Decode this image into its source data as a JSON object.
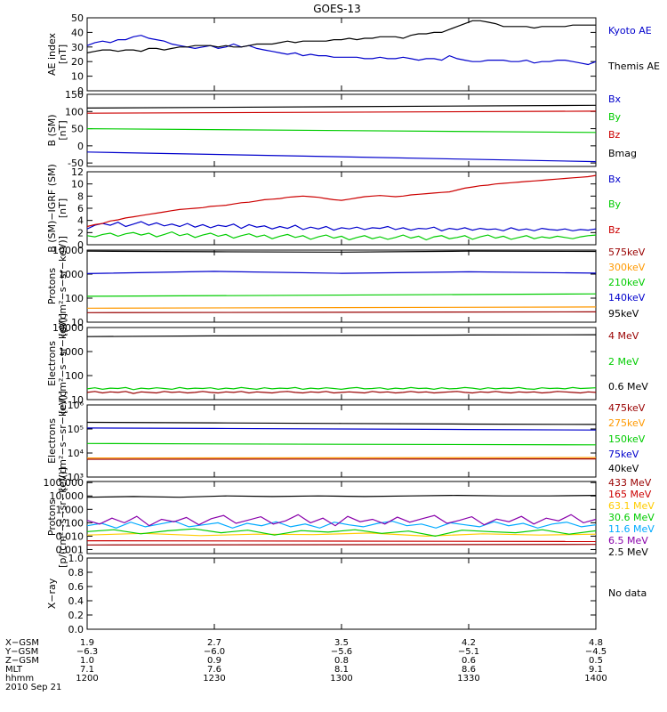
{
  "title": "GOES-13",
  "colors": {
    "black": "#000000",
    "blue": "#0000cc",
    "green": "#00cc00",
    "red": "#cc0000",
    "orange": "#ff9900",
    "cyan": "#00aaff",
    "purple": "#8800aa",
    "darkred": "#990000"
  },
  "chart_data": [
    {
      "type": "line",
      "ylabel": [
        "AE index",
        "[nT]"
      ],
      "yticks": [
        "0",
        "10",
        "20",
        "30",
        "40",
        "50"
      ],
      "ylim": [
        0,
        50
      ],
      "scale": "linear",
      "series": [
        {
          "name": "Kyoto AE",
          "color": "#0000cc",
          "side": "right",
          "values": [
            31,
            33,
            34,
            33,
            35,
            35,
            37,
            38,
            36,
            35,
            34,
            32,
            31,
            30,
            29,
            30,
            31,
            29,
            30,
            32,
            30,
            31,
            29,
            28,
            27,
            26,
            25,
            26,
            24,
            25,
            24,
            24,
            23,
            23,
            23,
            23,
            22,
            22,
            23,
            22,
            22,
            23,
            22,
            21,
            22,
            22,
            21,
            24,
            22,
            21,
            20,
            20,
            21,
            21,
            21,
            20,
            20,
            21,
            19,
            20,
            20,
            21,
            21,
            20,
            19,
            18,
            20
          ]
        },
        {
          "name": "Themis AE",
          "color": "#000000",
          "side": "right",
          "values": [
            26,
            27,
            28,
            28,
            27,
            28,
            28,
            27,
            29,
            29,
            28,
            29,
            30,
            30,
            31,
            31,
            31,
            30,
            31,
            30,
            30,
            31,
            32,
            32,
            32,
            33,
            34,
            33,
            34,
            34,
            34,
            34,
            35,
            35,
            36,
            35,
            36,
            36,
            37,
            37,
            37,
            36,
            38,
            39,
            39,
            40,
            40,
            42,
            44,
            46,
            48,
            48,
            47,
            46,
            44,
            44,
            44,
            44,
            43,
            44,
            44,
            44,
            44,
            45,
            45,
            45,
            45
          ]
        }
      ]
    },
    {
      "type": "line",
      "ylabel": [
        "B (SM)",
        "[nT]"
      ],
      "yticks": [
        "-50",
        "0",
        "50",
        "100",
        "150"
      ],
      "ylim": [
        -60,
        150
      ],
      "scale": "linear",
      "series": [
        {
          "name": "Bx",
          "color": "#0000cc",
          "values": [
            -18,
            -46
          ]
        },
        {
          "name": "By",
          "color": "#00cc00",
          "values": [
            50,
            39
          ]
        },
        {
          "name": "Bz",
          "color": "#cc0000",
          "values": [
            95,
            101
          ]
        },
        {
          "name": "Bmag",
          "color": "#000000",
          "values": [
            110,
            118
          ]
        }
      ]
    },
    {
      "type": "line",
      "ylabel": [
        "B (SM)−IGRF (SM)",
        "[nT]"
      ],
      "yticks": [
        "0",
        "2",
        "4",
        "6",
        "8",
        "10",
        "12"
      ],
      "ylim": [
        0,
        12
      ],
      "scale": "linear",
      "series": [
        {
          "name": "Bx",
          "color": "#0000cc",
          "values": [
            2.6,
            3.2,
            3.5,
            3.2,
            3.7,
            3.0,
            3.4,
            3.8,
            3.2,
            3.6,
            3.1,
            3.4,
            3.0,
            3.5,
            2.9,
            3.3,
            2.8,
            3.2,
            3.0,
            3.4,
            2.7,
            3.3,
            2.9,
            3.1,
            2.6,
            3.0,
            2.7,
            3.2,
            2.5,
            2.9,
            2.6,
            3.0,
            2.4,
            2.8,
            2.6,
            2.9,
            2.5,
            2.8,
            2.7,
            3.0,
            2.5,
            2.8,
            2.4,
            2.7,
            2.6,
            2.9,
            2.3,
            2.7,
            2.5,
            2.8,
            2.4,
            2.7,
            2.5,
            2.6,
            2.3,
            2.8,
            2.4,
            2.6,
            2.3,
            2.7,
            2.5,
            2.4,
            2.6,
            2.3,
            2.5,
            2.4,
            2.6
          ]
        },
        {
          "name": "By",
          "color": "#00cc00",
          "values": [
            1.5,
            1.3,
            1.7,
            1.9,
            1.4,
            1.8,
            2.0,
            1.6,
            1.9,
            1.3,
            1.7,
            2.1,
            1.5,
            1.8,
            1.2,
            1.6,
            1.9,
            1.4,
            1.7,
            1.1,
            1.5,
            1.8,
            1.3,
            1.6,
            1.0,
            1.4,
            1.7,
            1.2,
            1.5,
            0.9,
            1.3,
            1.6,
            1.1,
            1.4,
            0.8,
            1.2,
            1.5,
            1.0,
            1.3,
            0.9,
            1.2,
            1.6,
            1.1,
            1.4,
            0.8,
            1.3,
            1.5,
            1.0,
            1.2,
            1.5,
            0.9,
            1.3,
            1.6,
            1.1,
            1.4,
            0.9,
            1.2,
            1.5,
            1.0,
            1.3,
            1.1,
            1.4,
            1.2,
            1.0,
            1.3,
            1.5,
            1.6
          ]
        },
        {
          "name": "Bz",
          "color": "#cc0000",
          "values": [
            3.0,
            3.3,
            3.5,
            3.9,
            4.1,
            4.4,
            4.6,
            4.8,
            5.0,
            5.2,
            5.4,
            5.6,
            5.8,
            5.9,
            6.0,
            6.1,
            6.3,
            6.4,
            6.5,
            6.7,
            6.9,
            7.0,
            7.2,
            7.4,
            7.5,
            7.6,
            7.8,
            7.9,
            8.0,
            7.9,
            7.8,
            7.6,
            7.4,
            7.3,
            7.5,
            7.7,
            7.9,
            8.0,
            8.1,
            8.0,
            7.9,
            8.0,
            8.2,
            8.3,
            8.4,
            8.5,
            8.6,
            8.7,
            9.0,
            9.3,
            9.5,
            9.7,
            9.8,
            10.0,
            10.1,
            10.2,
            10.3,
            10.4,
            10.5,
            10.6,
            10.7,
            10.8,
            10.9,
            11.0,
            11.1,
            11.2,
            11.4
          ]
        }
      ]
    },
    {
      "type": "line",
      "ylabel": [
        "Protons",
        "[p/(cm²−s−sr−keV)]"
      ],
      "yticks": [
        "10",
        "100",
        "1000",
        "10000"
      ],
      "ylim": [
        10,
        10000
      ],
      "scale": "log",
      "series": [
        {
          "name": "575keV",
          "color": "#990000",
          "values": [
            25,
            27
          ]
        },
        {
          "name": "300keV",
          "color": "#ff9900",
          "values": [
            38,
            43
          ]
        },
        {
          "name": "210keV",
          "color": "#00cc00",
          "values": [
            120,
            150
          ]
        },
        {
          "name": "140keV",
          "color": "#0000cc",
          "values": [
            1050,
            1300,
            1080,
            1250,
            1100
          ]
        },
        {
          "name": "95keV",
          "color": "#000000",
          "values": [
            9000,
            8500,
            8200,
            9000,
            8800
          ]
        }
      ]
    },
    {
      "type": "line",
      "ylabel": [
        "Electrons",
        "[e/(cm²−s−sr−keV)]"
      ],
      "yticks": [
        "10",
        "100",
        "1000",
        "10000"
      ],
      "ylim": [
        10,
        10000
      ],
      "scale": "log",
      "series": [
        {
          "name": "4 MeV",
          "color": "#990000",
          "values": [
            20,
            22,
            19,
            21,
            20,
            22,
            18,
            21,
            20,
            19,
            22,
            20,
            21,
            19,
            20,
            22,
            20,
            19,
            21,
            20,
            22,
            19,
            21,
            20,
            19,
            21,
            22,
            20,
            19,
            21,
            20,
            22,
            19,
            20,
            21,
            20,
            19,
            22,
            20,
            21,
            19,
            20,
            22,
            20,
            21,
            19,
            20,
            21,
            22,
            20,
            19,
            21,
            20,
            22,
            20,
            19,
            21,
            20,
            21,
            19,
            20,
            22,
            21,
            20,
            19,
            21,
            20
          ]
        },
        {
          "name": "2 MeV",
          "color": "#00cc00",
          "values": [
            28,
            31,
            27,
            30,
            29,
            32,
            26,
            30,
            28,
            31,
            29,
            27,
            32,
            28,
            30,
            29,
            31,
            27,
            30,
            28,
            32,
            29,
            27,
            31,
            28,
            30,
            29,
            32,
            27,
            30,
            28,
            31,
            29,
            27,
            30,
            32,
            28,
            29,
            31,
            27,
            30,
            28,
            32,
            29,
            30,
            27,
            31,
            28,
            29,
            32,
            30,
            27,
            31,
            28,
            30,
            29,
            32,
            28,
            27,
            31,
            29,
            30,
            28,
            32,
            29,
            30,
            31
          ]
        },
        {
          "name": "0.6 MeV",
          "color": "#000000",
          "values": [
            4200,
            4500,
            4700,
            4900,
            5000
          ]
        }
      ]
    },
    {
      "type": "line",
      "ylabel": [
        "Electrons",
        "[e/(cm²−s−sr−keV)]"
      ],
      "yticks": [
        "10³",
        "10⁴",
        "10⁵",
        "10⁶"
      ],
      "ylim": [
        1000,
        1000000
      ],
      "scale": "log",
      "series": [
        {
          "name": "475keV",
          "color": "#990000",
          "values": [
            5500,
            5700
          ]
        },
        {
          "name": "275keV",
          "color": "#ff9900",
          "values": [
            6200,
            6500
          ]
        },
        {
          "name": "150keV",
          "color": "#00cc00",
          "values": [
            25000,
            23000,
            22000
          ]
        },
        {
          "name": "75keV",
          "color": "#0000cc",
          "values": [
            110000,
            105000,
            100000,
            95000,
            90000
          ]
        },
        {
          "name": "40keV",
          "color": "#000000",
          "values": [
            190000,
            180000,
            170000,
            160000,
            155000
          ]
        }
      ]
    },
    {
      "type": "line",
      "ylabel": [
        "Protons",
        "[p/(cm²−s−sr−keV)]"
      ],
      "yticks": [
        "0.001",
        "0.010",
        "0.100",
        "1.000",
        "10.000",
        "100.000"
      ],
      "ylim": [
        0.0005,
        120
      ],
      "scale": "log",
      "series": [
        {
          "name": "433 MeV",
          "color": "#990000",
          "values": [
            0.0022,
            0.0024
          ]
        },
        {
          "name": "165 MeV",
          "color": "#cc0000",
          "values": [
            0.0045,
            0.004
          ]
        },
        {
          "name": "63.1 MeV",
          "color": "#ffcc00",
          "values": [
            0.012,
            0.016,
            0.011,
            0.014,
            0.013,
            0.017,
            0.01,
            0.015,
            0.012,
            0.014
          ]
        },
        {
          "name": "30.6 MeV",
          "color": "#00cc00",
          "values": [
            0.022,
            0.03,
            0.015,
            0.025,
            0.035,
            0.018,
            0.028,
            0.012,
            0.026,
            0.02,
            0.03,
            0.016,
            0.024,
            0.01,
            0.028,
            0.022,
            0.018,
            0.03,
            0.014,
            0.025
          ]
        },
        {
          "name": "11.6 MeV",
          "color": "#00aaff",
          "values": [
            0.06,
            0.09,
            0.04,
            0.11,
            0.05,
            0.08,
            0.13,
            0.05,
            0.07,
            0.1,
            0.04,
            0.09,
            0.06,
            0.12,
            0.05,
            0.08,
            0.04,
            0.11,
            0.07,
            0.05,
            0.09,
            0.13,
            0.06,
            0.08,
            0.04,
            0.1,
            0.07,
            0.05,
            0.12,
            0.06,
            0.09,
            0.04,
            0.08,
            0.11,
            0.05,
            0.07
          ]
        },
        {
          "name": "6.5 MeV",
          "color": "#8800aa",
          "values": [
            0.15,
            0.08,
            0.22,
            0.1,
            0.3,
            0.06,
            0.18,
            0.12,
            0.25,
            0.07,
            0.2,
            0.35,
            0.09,
            0.16,
            0.28,
            0.08,
            0.14,
            0.4,
            0.1,
            0.22,
            0.06,
            0.3,
            0.12,
            0.18,
            0.08,
            0.26,
            0.11,
            0.2,
            0.35,
            0.09,
            0.15,
            0.28,
            0.07,
            0.19,
            0.12,
            0.3,
            0.08,
            0.22,
            0.14,
            0.4,
            0.1,
            0.18
          ]
        },
        {
          "name": "2.5 MeV",
          "color": "#000000",
          "values": [
            8,
            9,
            8,
            10,
            9,
            10,
            9,
            10,
            11,
            10,
            10,
            11
          ]
        }
      ]
    },
    {
      "type": "line",
      "ylabel": [
        "X−ray",
        ""
      ],
      "yticks": [
        "0.0",
        "0.2",
        "0.4",
        "0.6",
        "0.8",
        "1.0"
      ],
      "ylim": [
        0,
        1
      ],
      "scale": "linear",
      "series": [],
      "note": "No data"
    }
  ],
  "xaxis": {
    "rows": [
      {
        "label": "X−GSM",
        "values": [
          "1.9",
          "2.7",
          "3.5",
          "4.2",
          "4.8"
        ]
      },
      {
        "label": "Y−GSM",
        "values": [
          "−6.3",
          "−6.0",
          "−5.6",
          "−5.1",
          "−4.5"
        ]
      },
      {
        "label": "Z−GSM",
        "values": [
          "1.0",
          "0.9",
          "0.8",
          "0.6",
          "0.5"
        ]
      },
      {
        "label": "MLT",
        "values": [
          "7.1",
          "7.6",
          "8.1",
          "8.6",
          "9.1"
        ]
      },
      {
        "label": "hhmm",
        "values": [
          "1200",
          "1230",
          "1300",
          "1330",
          "1400"
        ]
      }
    ],
    "date": "2010 Sep 21"
  }
}
